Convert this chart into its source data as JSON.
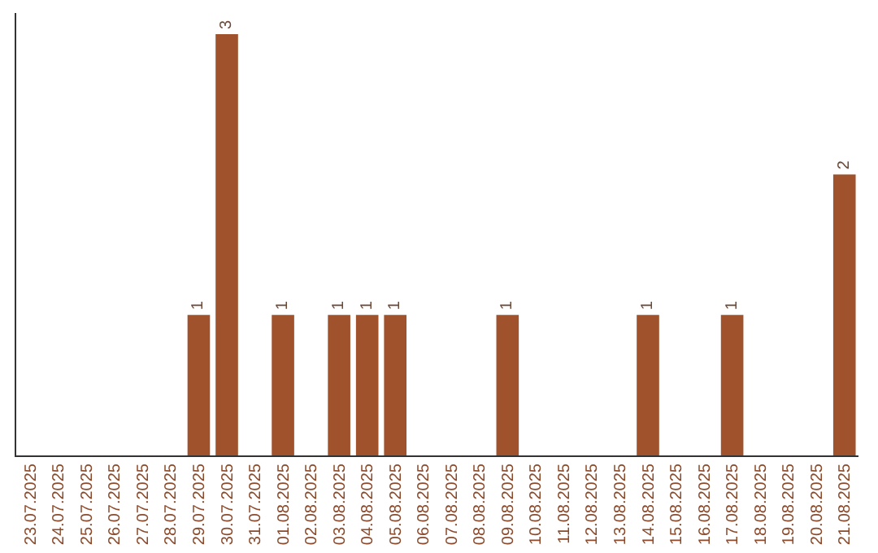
{
  "chart_data": {
    "type": "bar",
    "categories": [
      "23.07.2025",
      "24.07.2025",
      "25.07.2025",
      "26.07.2025",
      "27.07.2025",
      "28.07.2025",
      "29.07.2025",
      "30.07.2025",
      "31.07.2025",
      "01.08.2025",
      "02.08.2025",
      "03.08.2025",
      "04.08.2025",
      "05.08.2025",
      "06.08.2025",
      "07.08.2025",
      "08.08.2025",
      "09.08.2025",
      "10.08.2025",
      "11.08.2025",
      "12.08.2025",
      "13.08.2025",
      "14.08.2025",
      "15.08.2025",
      "16.08.2025",
      "17.08.2025",
      "18.08.2025",
      "19.08.2025",
      "20.08.2025",
      "21.08.2025"
    ],
    "values": [
      0,
      0,
      0,
      0,
      0,
      0,
      1,
      3,
      0,
      1,
      0,
      1,
      1,
      1,
      0,
      0,
      0,
      1,
      0,
      0,
      0,
      0,
      1,
      0,
      0,
      1,
      0,
      0,
      0,
      2
    ],
    "value_labels": [
      null,
      null,
      null,
      null,
      null,
      null,
      "1",
      "3",
      null,
      "1",
      null,
      "1",
      "1",
      "1",
      null,
      null,
      null,
      "1",
      null,
      null,
      null,
      null,
      "1",
      null,
      null,
      "1",
      null,
      null,
      null,
      "2"
    ],
    "color": "#a0522d",
    "ylim": [
      0,
      3.15
    ],
    "tick_labels": "x"
  }
}
